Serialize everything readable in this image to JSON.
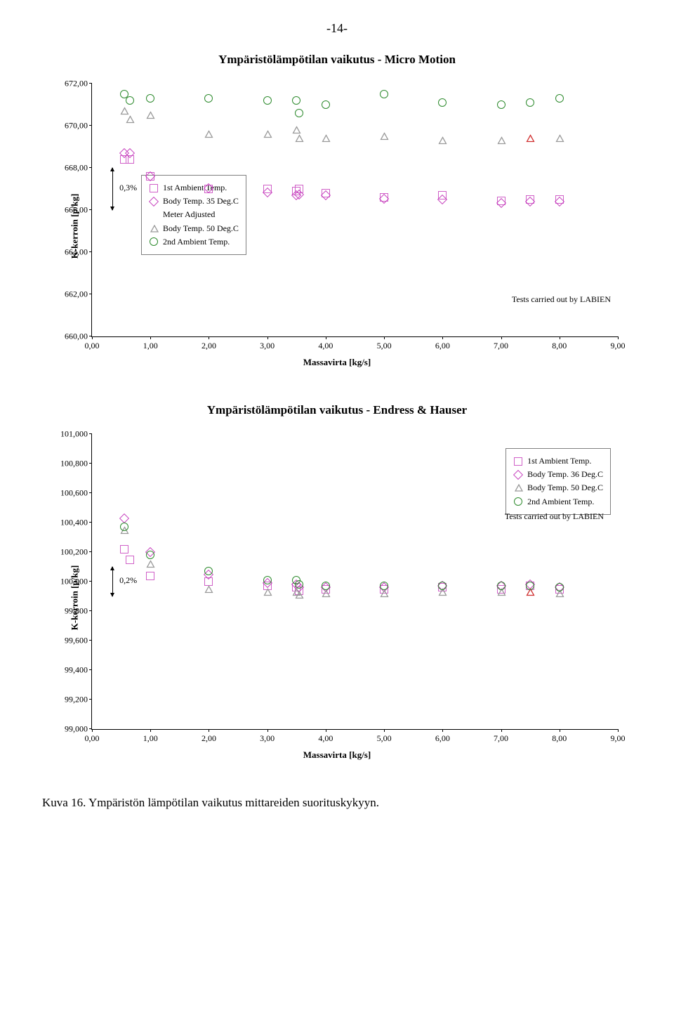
{
  "page_number": "-14-",
  "caption": "Kuva 16. Ympäristön lämpötilan vaikutus mittareiden suorituskykyyn.",
  "colors": {
    "sq": "#d060c8",
    "diam": "#c848c0",
    "tri_gray": "#9a9a9a",
    "tri_red": "#d03030",
    "circ": "#2e8b2e",
    "legend_border": "#808080"
  },
  "chart1": {
    "title": "Ympäristölämpötilan vaikutus - Micro Motion",
    "ylabel": "K-kerroin [p/kg]",
    "xlabel": "Massavirta [kg/s]",
    "note": "Tests carried out by LABIEN",
    "pct_label": "0,3%",
    "ylim": [
      660,
      672
    ],
    "ytick_step": 2,
    "yticks": [
      "660,00",
      "662,00",
      "664,00",
      "666,00",
      "668,00",
      "670,00",
      "672,00"
    ],
    "xlim": [
      0,
      9
    ],
    "xtick_step": 1,
    "xticks": [
      "0,00",
      "1,00",
      "2,00",
      "3,00",
      "4,00",
      "5,00",
      "6,00",
      "7,00",
      "8,00",
      "9,00"
    ],
    "legend": [
      {
        "shape": "sq",
        "label": "1st Ambient Temp."
      },
      {
        "shape": "diam",
        "label": "Body Temp. 35 Deg.C"
      },
      {
        "text": "Meter Adjusted"
      },
      {
        "shape": "tri_gray",
        "label": "Body Temp. 50 Deg.C"
      },
      {
        "shape": "circ",
        "label": "2nd Ambient Temp."
      }
    ],
    "series": {
      "sq": [
        [
          0.55,
          668.4
        ],
        [
          0.65,
          668.4
        ],
        [
          1.0,
          667.6
        ],
        [
          2.0,
          667.0
        ],
        [
          3.0,
          667.0
        ],
        [
          3.5,
          666.9
        ],
        [
          3.55,
          667.0
        ],
        [
          4.0,
          666.8
        ],
        [
          5.0,
          666.6
        ],
        [
          6.0,
          666.7
        ],
        [
          7.0,
          666.45
        ],
        [
          7.5,
          666.5
        ],
        [
          8.0,
          666.5
        ]
      ],
      "diam": [
        [
          0.55,
          668.7
        ],
        [
          0.65,
          668.7
        ],
        [
          1.0,
          667.6
        ],
        [
          2.0,
          667.05
        ],
        [
          3.0,
          666.85
        ],
        [
          3.5,
          666.7
        ],
        [
          3.55,
          666.75
        ],
        [
          4.0,
          666.7
        ],
        [
          5.0,
          666.55
        ],
        [
          6.0,
          666.5
        ],
        [
          7.0,
          666.35
        ],
        [
          7.5,
          666.4
        ],
        [
          8.0,
          666.4
        ]
      ],
      "tri_gray": [
        [
          0.55,
          670.7
        ],
        [
          0.65,
          670.3
        ],
        [
          1.0,
          670.5
        ],
        [
          2.0,
          669.6
        ],
        [
          3.0,
          669.6
        ],
        [
          3.5,
          669.8
        ],
        [
          3.55,
          669.4
        ],
        [
          4.0,
          669.4
        ],
        [
          5.0,
          669.5
        ],
        [
          6.0,
          669.3
        ],
        [
          7.0,
          669.3
        ],
        [
          8.0,
          669.4
        ]
      ],
      "tri_red": [
        [
          7.5,
          669.4
        ]
      ],
      "circ": [
        [
          0.55,
          671.5
        ],
        [
          0.65,
          671.2
        ],
        [
          1.0,
          671.3
        ],
        [
          2.0,
          671.3
        ],
        [
          3.0,
          671.2
        ],
        [
          3.5,
          671.2
        ],
        [
          3.55,
          670.6
        ],
        [
          4.0,
          671.0
        ],
        [
          5.0,
          671.5
        ],
        [
          6.0,
          671.1
        ],
        [
          7.0,
          671.0
        ],
        [
          7.5,
          671.1
        ],
        [
          8.0,
          671.3
        ]
      ]
    }
  },
  "chart2": {
    "title": "Ympäristölämpötilan vaikutus - Endress & Hauser",
    "ylabel": "K-kerroin  [p/kg]",
    "xlabel": "Massavirta [kg/s]",
    "note": "Tests carried out by LABIEN",
    "pct_label": "0,2%",
    "ylim": [
      99.0,
      101.0
    ],
    "ytick_step": 0.2,
    "yticks": [
      "99,000",
      "99,200",
      "99,400",
      "99,600",
      "99,800",
      "100,000",
      "100,200",
      "100,400",
      "100,600",
      "100,800",
      "101,000"
    ],
    "xlim": [
      0,
      9
    ],
    "xtick_step": 1,
    "xticks": [
      "0,00",
      "1,00",
      "2,00",
      "3,00",
      "4,00",
      "5,00",
      "6,00",
      "7,00",
      "8,00",
      "9,00"
    ],
    "legend": [
      {
        "shape": "sq",
        "label": "1st Ambient Temp."
      },
      {
        "shape": "diam",
        "label": "Body Temp. 36 Deg.C"
      },
      {
        "shape": "tri_gray",
        "label": "Body Temp. 50 Deg.C"
      },
      {
        "shape": "circ",
        "label": "2nd Ambient Temp."
      }
    ],
    "series": {
      "sq": [
        [
          0.55,
          100.22
        ],
        [
          0.65,
          100.15
        ],
        [
          1.0,
          100.04
        ],
        [
          2.0,
          100.0
        ],
        [
          3.0,
          99.97
        ],
        [
          3.5,
          99.96
        ],
        [
          3.55,
          99.94
        ],
        [
          4.0,
          99.95
        ],
        [
          5.0,
          99.95
        ],
        [
          6.0,
          99.96
        ],
        [
          7.0,
          99.95
        ],
        [
          7.5,
          99.97
        ],
        [
          8.0,
          99.95
        ]
      ],
      "diam": [
        [
          0.55,
          100.43
        ],
        [
          1.0,
          100.2
        ],
        [
          2.0,
          100.05
        ],
        [
          3.0,
          99.99
        ],
        [
          3.5,
          99.98
        ],
        [
          3.55,
          99.96
        ],
        [
          4.0,
          99.96
        ],
        [
          5.0,
          99.96
        ],
        [
          6.0,
          99.97
        ],
        [
          7.0,
          99.97
        ],
        [
          7.5,
          99.98
        ],
        [
          8.0,
          99.96
        ]
      ],
      "tri_gray": [
        [
          0.55,
          100.35
        ],
        [
          1.0,
          100.12
        ],
        [
          2.0,
          99.95
        ],
        [
          3.0,
          99.93
        ],
        [
          3.5,
          99.93
        ],
        [
          3.55,
          99.91
        ],
        [
          4.0,
          99.92
        ],
        [
          5.0,
          99.92
        ],
        [
          6.0,
          99.93
        ],
        [
          7.0,
          99.93
        ],
        [
          8.0,
          99.92
        ]
      ],
      "tri_red": [
        [
          7.5,
          99.93
        ]
      ],
      "circ": [
        [
          0.55,
          100.37
        ],
        [
          1.0,
          100.18
        ],
        [
          2.0,
          100.07
        ],
        [
          3.0,
          100.01
        ],
        [
          3.5,
          100.01
        ],
        [
          3.55,
          99.98
        ],
        [
          4.0,
          99.97
        ],
        [
          5.0,
          99.97
        ],
        [
          6.0,
          99.97
        ],
        [
          7.0,
          99.97
        ],
        [
          7.5,
          99.97
        ],
        [
          8.0,
          99.96
        ]
      ]
    }
  }
}
